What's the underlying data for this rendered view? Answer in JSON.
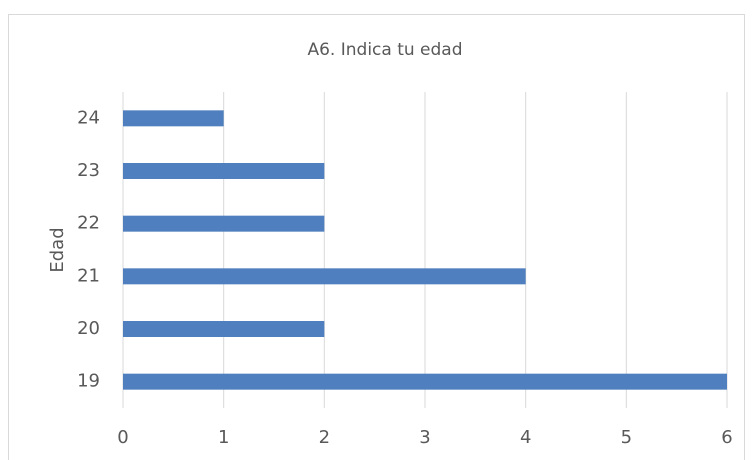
{
  "chart_data": {
    "type": "barh",
    "title": "A6. Indica tu edad",
    "y_label": "Edad",
    "categories": [
      "19",
      "20",
      "21",
      "22",
      "23",
      "24"
    ],
    "values": [
      6,
      2,
      4,
      2,
      2,
      1
    ],
    "color": "#4f7fbe",
    "xlim": [
      0,
      6
    ],
    "xticks": [
      0,
      1,
      2,
      3,
      4,
      5,
      6
    ],
    "grid": true
  }
}
